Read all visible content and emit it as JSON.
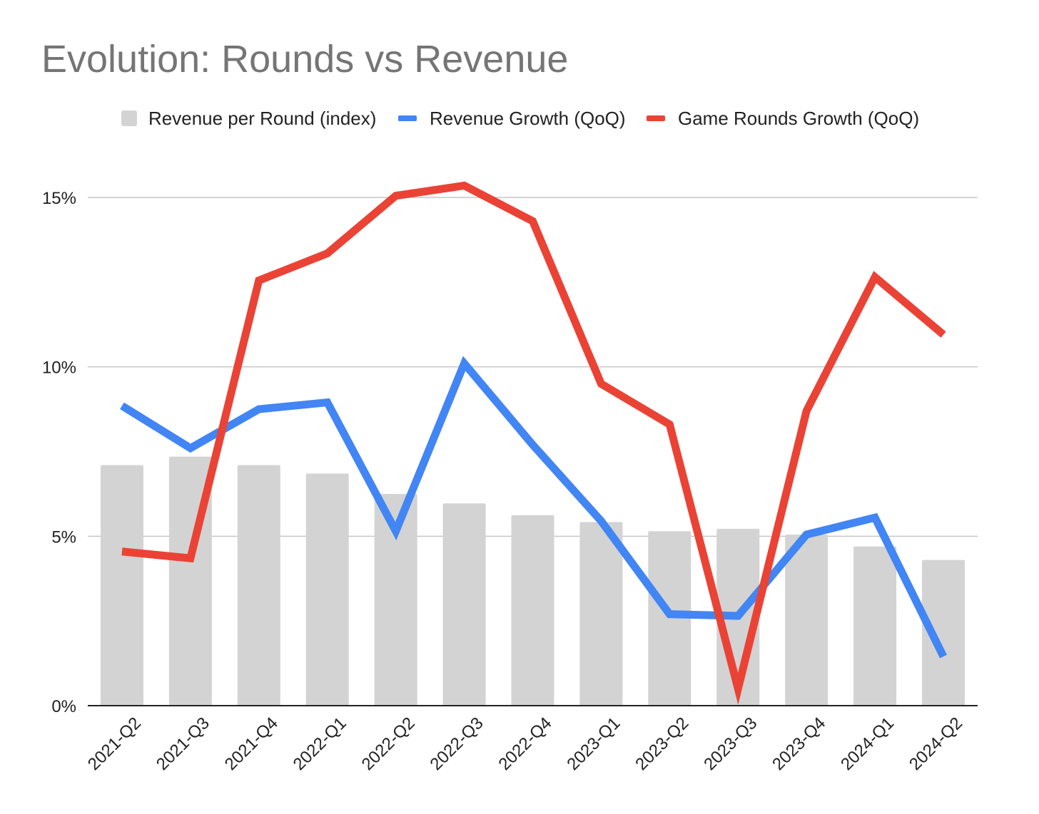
{
  "chart_data": {
    "type": "bar",
    "title": "Evolution: Rounds vs Revenue",
    "categories": [
      "2021-Q2",
      "2021-Q3",
      "2021-Q4",
      "2022-Q1",
      "2022-Q2",
      "2022-Q3",
      "2022-Q4",
      "2023-Q1",
      "2023-Q2",
      "2023-Q3",
      "2023-Q4",
      "2024-Q1",
      "2024-Q2"
    ],
    "y_ticks": [
      "0%",
      "5%",
      "10%",
      "15%"
    ],
    "ylim": [
      0,
      16.5
    ],
    "grid": true,
    "legend_position": "top",
    "series": [
      {
        "name": "Revenue per Round (index)",
        "type": "bar",
        "color": "#d3d3d3",
        "values": [
          7.1,
          7.35,
          7.1,
          6.85,
          6.25,
          5.97,
          5.62,
          5.42,
          5.15,
          5.22,
          5.05,
          4.7,
          4.3
        ]
      },
      {
        "name": "Revenue Growth (QoQ)",
        "type": "line",
        "color": "#4285f4",
        "values": [
          8.85,
          7.6,
          8.75,
          8.95,
          5.15,
          10.1,
          7.7,
          5.45,
          2.7,
          2.65,
          5.05,
          5.55,
          1.45
        ]
      },
      {
        "name": "Game Rounds Growth (QoQ)",
        "type": "line",
        "color": "#ea4335",
        "values": [
          4.55,
          4.35,
          12.55,
          13.35,
          15.05,
          15.35,
          14.3,
          9.5,
          8.3,
          0.5,
          8.7,
          12.65,
          10.95
        ]
      }
    ]
  }
}
